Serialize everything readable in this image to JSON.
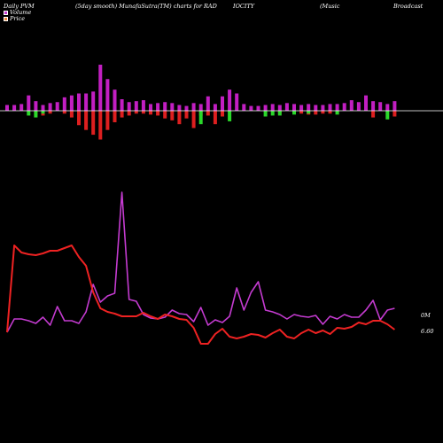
{
  "header": {
    "t1": "Daily PVM",
    "t2": "(5day smooth) MunafaSutra(TM) charts for RAD",
    "t3": "IOCITY",
    "t4": "(Music",
    "t5": "Broadcast"
  },
  "legend": {
    "volume": "Volume",
    "price": "Price"
  },
  "colors": {
    "up_bar": "#c21fc2",
    "down_bar": "#dd1f1f",
    "green_bar": "#2ad82a",
    "volume_line": "#c43bd0",
    "price_line": "#ee2222",
    "baseline": "#ffffff"
  },
  "chart_data": {
    "type": "line",
    "bars": {
      "up": [
        6,
        6,
        7,
        16,
        10,
        6,
        8,
        9,
        14,
        16,
        18,
        18,
        20,
        48,
        33,
        22,
        12,
        9,
        10,
        11,
        7,
        8,
        9,
        8,
        6,
        5,
        8,
        7,
        15,
        7,
        15,
        22,
        18,
        7,
        5,
        5,
        6,
        7,
        6,
        8,
        7,
        6,
        7,
        6,
        6,
        7,
        7,
        8,
        11,
        9,
        16,
        10,
        9,
        7,
        10
      ],
      "down": [
        0,
        0,
        0,
        0,
        5,
        5,
        3,
        0,
        3,
        7,
        15,
        20,
        25,
        30,
        20,
        12,
        7,
        5,
        3,
        3,
        4,
        5,
        8,
        10,
        14,
        8,
        18,
        5,
        5,
        14,
        6,
        0,
        0,
        0,
        0,
        0,
        0,
        0,
        3,
        0,
        0,
        3,
        4,
        4,
        3,
        3,
        3,
        0,
        0,
        0,
        0,
        7,
        0,
        0,
        6
      ],
      "green": [
        0,
        0,
        0,
        5,
        7,
        3,
        0,
        0,
        0,
        0,
        0,
        0,
        0,
        0,
        0,
        0,
        0,
        0,
        0,
        0,
        0,
        0,
        0,
        0,
        0,
        0,
        0,
        14,
        0,
        0,
        0,
        11,
        0,
        0,
        0,
        0,
        6,
        5,
        5,
        0,
        4,
        0,
        3,
        0,
        0,
        0,
        4,
        0,
        0,
        0,
        0,
        0,
        0,
        9,
        0
      ]
    },
    "volume": [
      375,
      360,
      360,
      362,
      365,
      358,
      367,
      346,
      362,
      362,
      365,
      352,
      321,
      341,
      334,
      331,
      217,
      338,
      340,
      355,
      359,
      360,
      358,
      350,
      354,
      355,
      363,
      347,
      367,
      361,
      364,
      357,
      325,
      350,
      330,
      318,
      350,
      352,
      355,
      360,
      355,
      357,
      358,
      356,
      366,
      357,
      360,
      355,
      358,
      358,
      350,
      339,
      361,
      350,
      348
    ],
    "price": [
      375,
      277,
      285,
      287,
      288,
      286,
      283,
      283,
      280,
      277,
      290,
      300,
      330,
      348,
      352,
      354,
      357,
      357,
      357,
      353,
      357,
      360,
      355,
      357,
      360,
      361,
      370,
      388,
      388,
      377,
      371,
      380,
      382,
      380,
      377,
      378,
      381,
      376,
      372,
      380,
      382,
      376,
      372,
      376,
      373,
      377,
      370,
      371,
      369,
      364,
      366,
      362,
      362,
      366,
      372
    ],
    "price_label": "6.60",
    "volume_label": "0M"
  }
}
